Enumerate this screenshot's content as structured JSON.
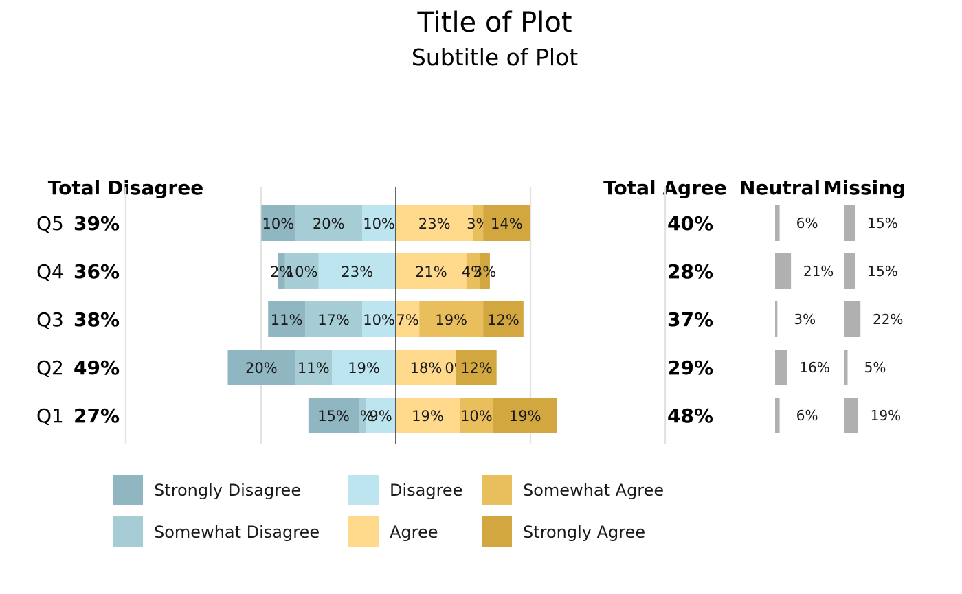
{
  "chart_data": {
    "type": "bar",
    "title": "Title of Plot",
    "subtitle": "Subtitle of Plot",
    "headers": {
      "total_disagree": "Total Disagree",
      "total_agree": "Total Agree",
      "neutral": "Neutral",
      "missing": "Missing"
    },
    "categories": [
      "Q5",
      "Q4",
      "Q3",
      "Q2",
      "Q1"
    ],
    "series": [
      {
        "name": "Strongly Disagree",
        "color": "#8FB6C1",
        "side": "neg",
        "values": [
          10,
          2,
          11,
          20,
          15
        ],
        "labels": [
          "10%",
          "2%",
          "11%",
          "20%",
          "15%"
        ]
      },
      {
        "name": "Somewhat Disagree",
        "color": "#A6CDD6",
        "side": "neg",
        "values": [
          20,
          10,
          17,
          11,
          2
        ],
        "labels": [
          "20%",
          "10%",
          "17%",
          "11%",
          "2%"
        ]
      },
      {
        "name": "Disagree",
        "color": "#BDE5EF",
        "side": "neg",
        "values": [
          10,
          23,
          10,
          19,
          9
        ],
        "labels": [
          "10%",
          "23%",
          "10%",
          "19%",
          "9%"
        ]
      },
      {
        "name": "Agree",
        "color": "#FFD98C",
        "side": "pos",
        "values": [
          23,
          21,
          7,
          18,
          19
        ],
        "labels": [
          "23%",
          "21%",
          "7%",
          "18%",
          "19%"
        ]
      },
      {
        "name": "Somewhat Agree",
        "color": "#E9BE5C",
        "side": "pos",
        "values": [
          3,
          4,
          19,
          0,
          10
        ],
        "labels": [
          "3%",
          "4%",
          "19%",
          "0%",
          "10%"
        ]
      },
      {
        "name": "Strongly Agree",
        "color": "#D3A73F",
        "side": "pos",
        "values": [
          14,
          3,
          12,
          12,
          19
        ],
        "labels": [
          "14%",
          "3%",
          "12%",
          "12%",
          "19%"
        ]
      }
    ],
    "totals_disagree": [
      "39%",
      "36%",
      "38%",
      "49%",
      "27%"
    ],
    "totals_agree": [
      "40%",
      "28%",
      "37%",
      "29%",
      "48%"
    ],
    "neutral": {
      "values": [
        6,
        21,
        3,
        16,
        6
      ],
      "labels": [
        "6%",
        "21%",
        "3%",
        "16%",
        "6%"
      ]
    },
    "missing": {
      "values": [
        15,
        15,
        22,
        5,
        19
      ],
      "labels": [
        "15%",
        "15%",
        "22%",
        "5%",
        "19%"
      ]
    },
    "side_bar_color": "#B0B0B0",
    "legend_order": [
      "Strongly Disagree",
      "Somewhat Disagree",
      "Disagree",
      "Agree",
      "Somewhat Agree",
      "Strongly Agree"
    ],
    "legend_position": "bottom"
  }
}
